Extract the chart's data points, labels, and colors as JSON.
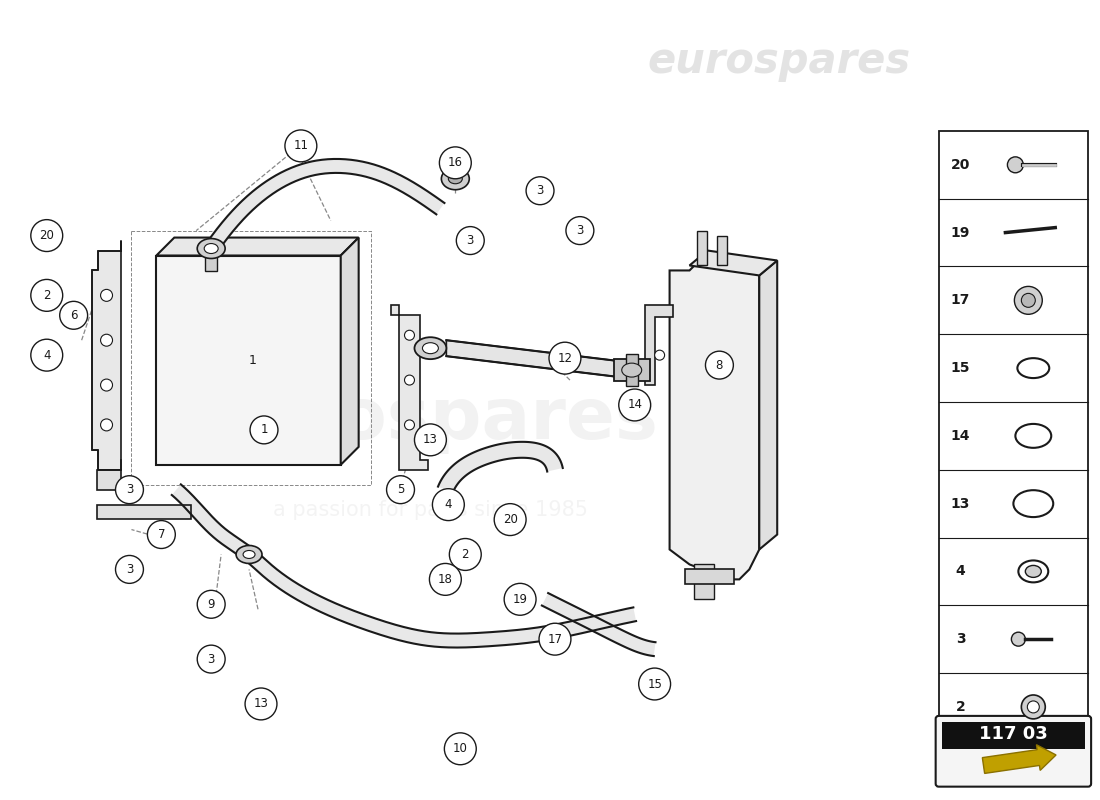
{
  "bg_color": "#ffffff",
  "line_color": "#1a1a1a",
  "part_number_label": "117 03",
  "watermark_text1": "eurospares",
  "watermark_text2": "a passion for parts since 1985",
  "sidebar_items": [
    {
      "num": 20,
      "type": "bolt_with_shaft"
    },
    {
      "num": 19,
      "type": "spring_pin"
    },
    {
      "num": 17,
      "type": "plug_hex"
    },
    {
      "num": 15,
      "type": "seal_oval_small"
    },
    {
      "num": 14,
      "type": "seal_oval_medium"
    },
    {
      "num": 13,
      "type": "seal_oval_large"
    },
    {
      "num": 4,
      "type": "seal_with_lip"
    },
    {
      "num": 3,
      "type": "bolt_small"
    },
    {
      "num": 2,
      "type": "nut_cap"
    }
  ]
}
